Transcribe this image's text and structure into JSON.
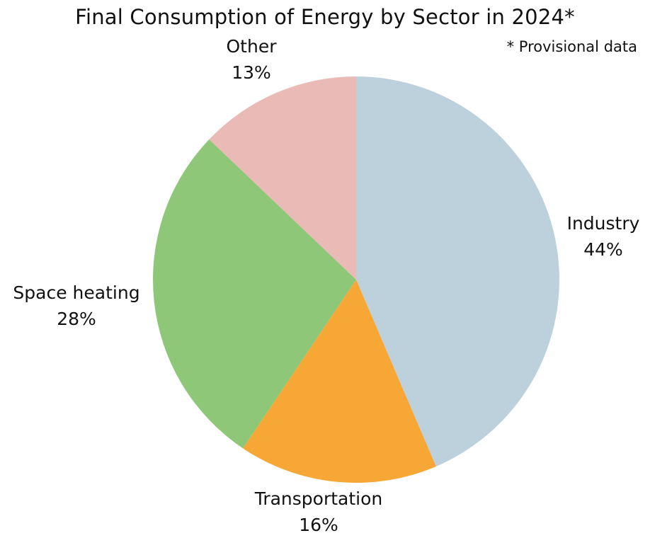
{
  "chart_data": {
    "type": "pie",
    "title": "Final Consumption of Energy by Sector in 2024*",
    "note": "* Provisional data",
    "slices": [
      {
        "label": "Industry",
        "value": 44,
        "value_label": "44%",
        "color": "#bdd1dd"
      },
      {
        "label": "Transportation",
        "value": 16,
        "value_label": "16%",
        "color": "#f7a736"
      },
      {
        "label": "Space heating",
        "value": 28,
        "value_label": "28%",
        "color": "#8fc779"
      },
      {
        "label": "Other",
        "value": 13,
        "value_label": "13%",
        "color": "#e9bab6"
      }
    ],
    "start": "12 o'clock",
    "direction": "clockwise",
    "legend": "none"
  }
}
